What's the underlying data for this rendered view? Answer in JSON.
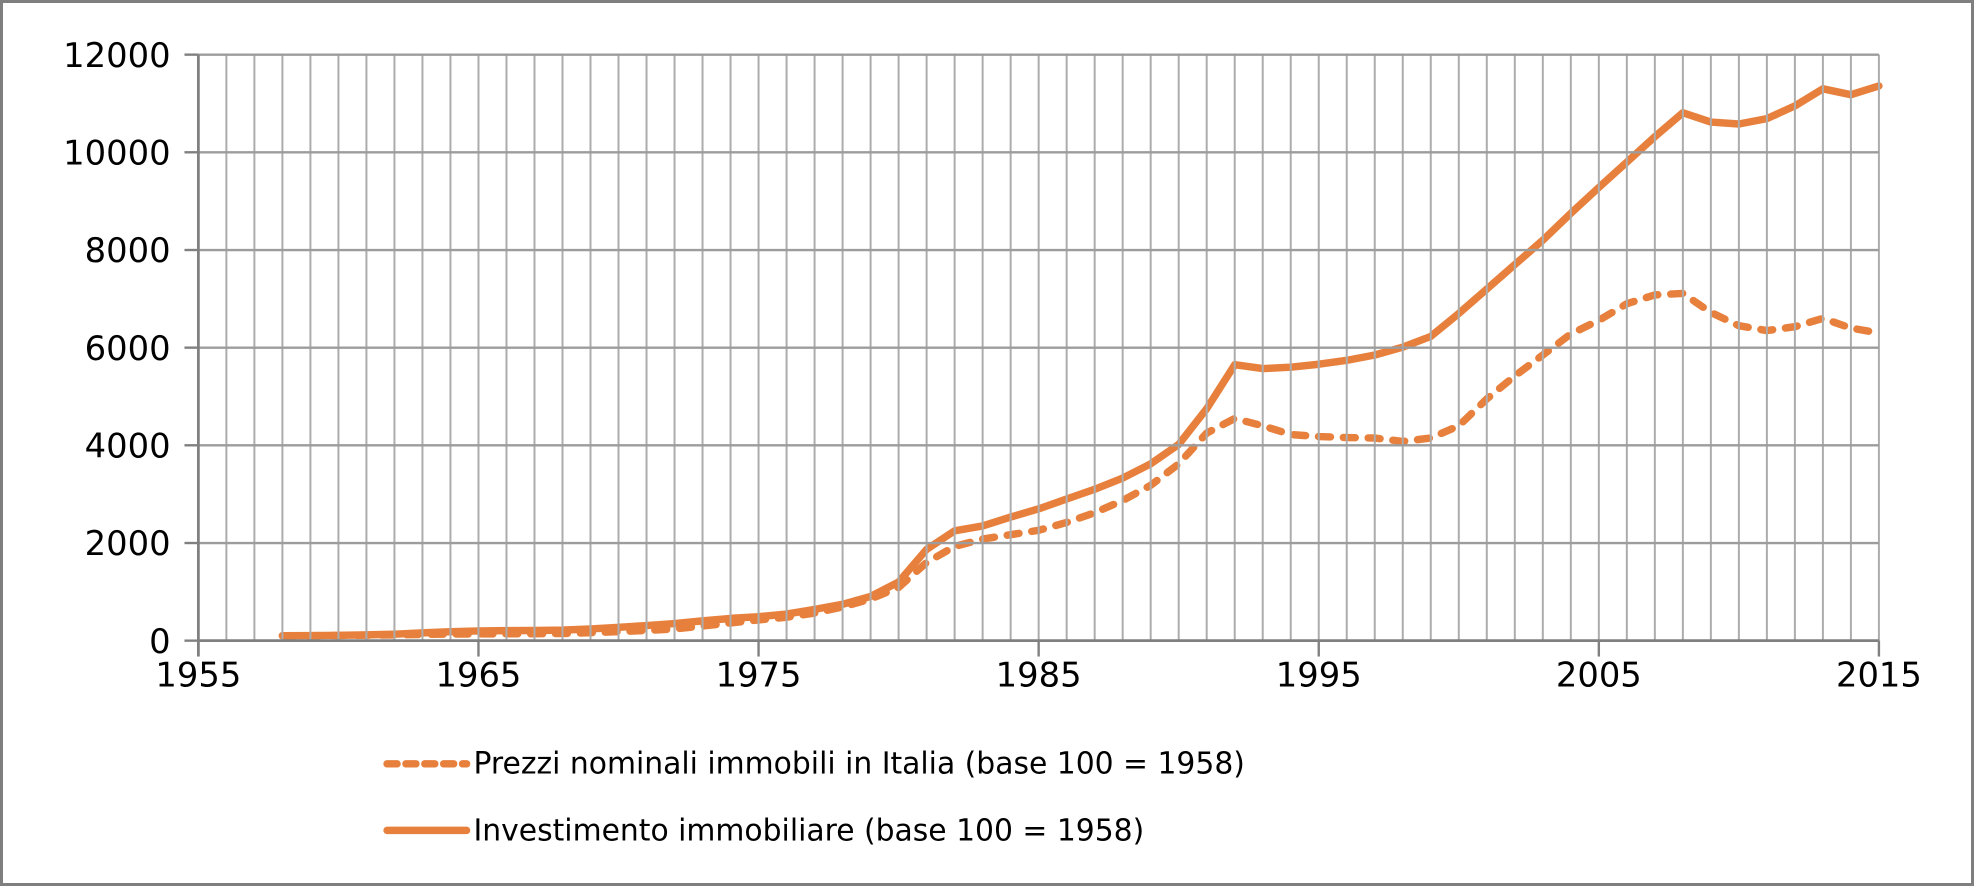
{
  "window": {
    "background": "#ffffff",
    "frame_border_color": "#7f7f7f"
  },
  "chart_data": {
    "type": "line",
    "title": "",
    "xlabel": "",
    "ylabel": "",
    "xlim": [
      1955,
      2015
    ],
    "ylim": [
      0,
      12000
    ],
    "x_ticks": [
      1955,
      1965,
      1975,
      1985,
      1995,
      2005,
      2015
    ],
    "y_ticks": [
      0,
      2000,
      4000,
      6000,
      8000,
      10000,
      12000
    ],
    "grid": "on",
    "gridline_vertical_interval_years": 1,
    "legend_position": "bottom",
    "colors": {
      "series": "#E8803D",
      "grid_vertical": "#ACACAC",
      "grid_horizontal": "#9C9C9C",
      "axis": "#808080",
      "text": "#000000"
    },
    "x": [
      1958,
      1959,
      1960,
      1961,
      1962,
      1963,
      1964,
      1965,
      1966,
      1967,
      1968,
      1969,
      1970,
      1971,
      1972,
      1973,
      1974,
      1975,
      1976,
      1977,
      1978,
      1979,
      1980,
      1981,
      1982,
      1983,
      1984,
      1985,
      1986,
      1987,
      1988,
      1989,
      1990,
      1991,
      1992,
      1993,
      1994,
      1995,
      1996,
      1997,
      1998,
      1999,
      2000,
      2001,
      2002,
      2003,
      2004,
      2005,
      2006,
      2007,
      2008,
      2009,
      2010,
      2011,
      2012,
      2013,
      2014,
      2015
    ],
    "series": [
      {
        "name": "Prezzi nominali immobili in Italia (base 100 = 1958)",
        "style": "dashed",
        "values": [
          100,
          102,
          106,
          111,
          118,
          128,
          134,
          138,
          140,
          141,
          146,
          162,
          185,
          210,
          240,
          300,
          365,
          425,
          480,
          565,
          690,
          855,
          1090,
          1600,
          1930,
          2080,
          2170,
          2260,
          2420,
          2620,
          2870,
          3180,
          3620,
          4250,
          4550,
          4400,
          4220,
          4180,
          4160,
          4150,
          4080,
          4150,
          4400,
          4950,
          5420,
          5850,
          6280,
          6560,
          6900,
          7080,
          7110,
          6720,
          6450,
          6350,
          6430,
          6600,
          6400,
          6300
        ]
      },
      {
        "name": "Investimento immobiliare (base 100 = 1958)",
        "style": "solid",
        "values": [
          100,
          104,
          110,
          118,
          132,
          158,
          183,
          200,
          205,
          207,
          216,
          240,
          272,
          310,
          350,
          405,
          455,
          490,
          545,
          640,
          745,
          905,
          1200,
          1870,
          2250,
          2350,
          2530,
          2700,
          2900,
          3100,
          3330,
          3620,
          4020,
          4750,
          5650,
          5570,
          5600,
          5660,
          5740,
          5850,
          6010,
          6230,
          6700,
          7200,
          7700,
          8200,
          8750,
          9280,
          9800,
          10320,
          10810,
          10620,
          10580,
          10690,
          10950,
          11300,
          11180,
          11360
        ]
      }
    ]
  }
}
